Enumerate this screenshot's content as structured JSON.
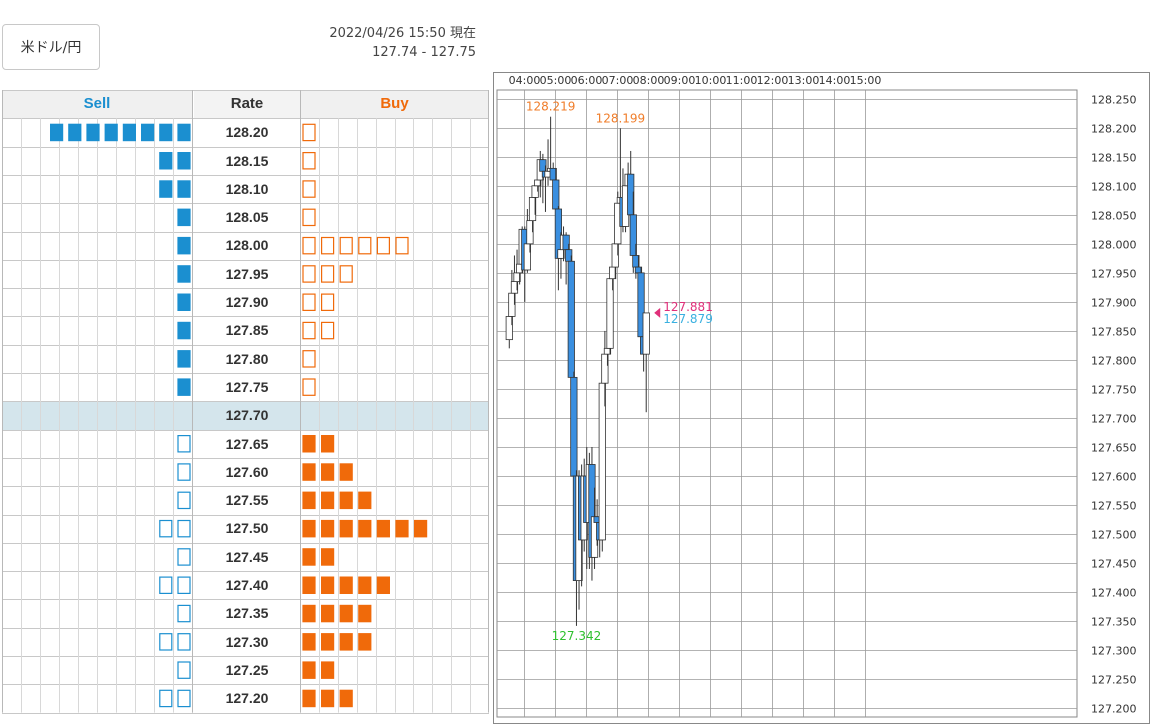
{
  "pair_button": "米ドル/円",
  "timestamp": "2022/04/26 15:50 現在",
  "bid_ask": "127.74 - 127.75",
  "colors": {
    "sell": "#1b8fd0",
    "buy": "#f06a0a",
    "rate_highlight": "#d4e5ec",
    "bear_candle": "#3a8fe0",
    "bull_candle": "#ffffff",
    "high_marker": "#f07d2a",
    "low_marker": "#2ec02e",
    "ask_marker": "#e0307a",
    "bid_marker": "#3ab0e0"
  },
  "order_book": {
    "headers": {
      "sell": "Sell",
      "rate": "Rate",
      "buy": "Buy"
    },
    "rows": [
      {
        "rate": "128.20",
        "sell": 8,
        "sell_filled": true,
        "buy": 1,
        "buy_filled": false
      },
      {
        "rate": "128.15",
        "sell": 2,
        "sell_filled": true,
        "buy": 1,
        "buy_filled": false
      },
      {
        "rate": "128.10",
        "sell": 2,
        "sell_filled": true,
        "buy": 1,
        "buy_filled": false
      },
      {
        "rate": "128.05",
        "sell": 1,
        "sell_filled": true,
        "buy": 1,
        "buy_filled": false
      },
      {
        "rate": "128.00",
        "sell": 1,
        "sell_filled": true,
        "buy": 6,
        "buy_filled": false
      },
      {
        "rate": "127.95",
        "sell": 1,
        "sell_filled": true,
        "buy": 3,
        "buy_filled": false
      },
      {
        "rate": "127.90",
        "sell": 1,
        "sell_filled": true,
        "buy": 2,
        "buy_filled": false
      },
      {
        "rate": "127.85",
        "sell": 1,
        "sell_filled": true,
        "buy": 2,
        "buy_filled": false
      },
      {
        "rate": "127.80",
        "sell": 1,
        "sell_filled": true,
        "buy": 1,
        "buy_filled": false
      },
      {
        "rate": "127.75",
        "sell": 1,
        "sell_filled": true,
        "buy": 1,
        "buy_filled": false
      },
      {
        "rate": "127.70",
        "sell": 0,
        "sell_filled": true,
        "buy": 0,
        "buy_filled": true,
        "current": true
      },
      {
        "rate": "127.65",
        "sell": 1,
        "sell_filled": false,
        "buy": 2,
        "buy_filled": true
      },
      {
        "rate": "127.60",
        "sell": 1,
        "sell_filled": false,
        "buy": 3,
        "buy_filled": true
      },
      {
        "rate": "127.55",
        "sell": 1,
        "sell_filled": false,
        "buy": 4,
        "buy_filled": true
      },
      {
        "rate": "127.50",
        "sell": 2,
        "sell_filled": false,
        "buy": 7,
        "buy_filled": true
      },
      {
        "rate": "127.45",
        "sell": 1,
        "sell_filled": false,
        "buy": 2,
        "buy_filled": true
      },
      {
        "rate": "127.40",
        "sell": 2,
        "sell_filled": false,
        "buy": 5,
        "buy_filled": true
      },
      {
        "rate": "127.35",
        "sell": 1,
        "sell_filled": false,
        "buy": 4,
        "buy_filled": true
      },
      {
        "rate": "127.30",
        "sell": 2,
        "sell_filled": false,
        "buy": 4,
        "buy_filled": true
      },
      {
        "rate": "127.25",
        "sell": 1,
        "sell_filled": false,
        "buy": 2,
        "buy_filled": true
      },
      {
        "rate": "127.20",
        "sell": 2,
        "sell_filled": false,
        "buy": 3,
        "buy_filled": true
      }
    ]
  },
  "chart_data": {
    "type": "candlestick",
    "time_labels": [
      "04:00",
      "05:00",
      "06:00",
      "07:00",
      "08:00",
      "09:00",
      "10:00",
      "11:00",
      "12:00",
      "13:00",
      "14:00",
      "15:00"
    ],
    "price_labels": [
      "128.250",
      "128.200",
      "128.150",
      "128.100",
      "128.050",
      "128.000",
      "127.950",
      "127.900",
      "127.850",
      "127.800",
      "127.750",
      "127.700",
      "127.650",
      "127.600",
      "127.550",
      "127.500",
      "127.450",
      "127.400",
      "127.350",
      "127.300",
      "127.250",
      "127.200"
    ],
    "ylim": [
      127.185,
      128.265
    ],
    "candles_per_hour": 12,
    "start_hour": "03:30",
    "ohlc": [
      [
        127.835,
        127.9,
        127.82,
        127.875
      ],
      [
        127.875,
        127.955,
        127.86,
        127.915
      ],
      [
        127.915,
        127.98,
        127.895,
        127.935
      ],
      [
        127.935,
        127.99,
        127.92,
        127.95
      ],
      [
        127.95,
        128.01,
        127.93,
        127.965
      ],
      [
        127.965,
        128.03,
        127.95,
        128.025
      ],
      [
        128.025,
        128.03,
        127.9,
        127.955
      ],
      [
        127.955,
        128.06,
        127.95,
        128.0
      ],
      [
        128.0,
        128.05,
        127.985,
        128.04
      ],
      [
        128.04,
        128.095,
        128.02,
        128.08
      ],
      [
        128.08,
        128.11,
        128.05,
        128.1
      ],
      [
        128.1,
        128.13,
        128.09,
        128.11
      ],
      [
        128.11,
        128.16,
        128.08,
        128.145
      ],
      [
        128.145,
        128.155,
        128.07,
        128.125
      ],
      [
        128.125,
        128.135,
        128.055,
        128.115
      ],
      [
        128.115,
        128.18,
        128.1,
        128.125
      ],
      [
        128.125,
        128.219,
        128.12,
        128.13
      ],
      [
        128.13,
        128.14,
        128.06,
        128.11
      ],
      [
        128.11,
        128.13,
        128.05,
        128.06
      ],
      [
        128.06,
        128.065,
        127.92,
        127.975
      ],
      [
        127.975,
        128.02,
        127.94,
        127.99
      ],
      [
        127.99,
        128.03,
        127.97,
        128.015
      ],
      [
        128.015,
        128.02,
        127.93,
        127.99
      ],
      [
        127.99,
        128.0,
        127.89,
        127.97
      ],
      [
        127.97,
        127.98,
        127.74,
        127.77
      ],
      [
        127.77,
        127.78,
        127.48,
        127.6
      ],
      [
        127.6,
        127.61,
        127.342,
        127.42
      ],
      [
        127.42,
        127.61,
        127.37,
        127.6
      ],
      [
        127.6,
        127.62,
        127.41,
        127.49
      ],
      [
        127.49,
        127.63,
        127.47,
        127.6
      ],
      [
        127.6,
        127.65,
        127.44,
        127.52
      ],
      [
        127.52,
        127.64,
        127.44,
        127.62
      ],
      [
        127.62,
        127.65,
        127.42,
        127.46
      ],
      [
        127.46,
        127.58,
        127.44,
        127.53
      ],
      [
        127.53,
        127.56,
        127.48,
        127.52
      ],
      [
        127.52,
        127.54,
        127.46,
        127.49
      ],
      [
        127.49,
        127.76,
        127.47,
        127.76
      ],
      [
        127.76,
        127.85,
        127.72,
        127.81
      ],
      [
        127.81,
        127.88,
        127.79,
        127.82
      ],
      [
        127.82,
        127.96,
        127.81,
        127.94
      ],
      [
        127.94,
        128.0,
        127.92,
        127.96
      ],
      [
        127.96,
        128.02,
        127.94,
        128.0
      ],
      [
        128.0,
        128.09,
        127.98,
        128.07
      ],
      [
        128.07,
        128.199,
        128.05,
        128.08
      ],
      [
        128.08,
        128.13,
        128.02,
        128.03
      ],
      [
        128.03,
        128.11,
        128.02,
        128.1
      ],
      [
        128.1,
        128.14,
        128.08,
        128.12
      ],
      [
        128.12,
        128.16,
        128.04,
        128.05
      ],
      [
        128.05,
        128.09,
        127.95,
        127.98
      ],
      [
        127.98,
        128.0,
        127.94,
        127.96
      ],
      [
        127.96,
        127.98,
        127.89,
        127.95
      ],
      [
        127.95,
        127.96,
        127.83,
        127.84
      ],
      [
        127.84,
        127.86,
        127.78,
        127.81
      ],
      [
        127.81,
        127.881,
        127.71,
        127.881
      ]
    ],
    "annotations": [
      {
        "text": "128.219",
        "price": 128.219,
        "color": "#f07d2a"
      },
      {
        "text": "128.199",
        "price": 128.199,
        "color": "#f07d2a"
      },
      {
        "text": "127.342",
        "price": 127.342,
        "color": "#2ec02e"
      }
    ],
    "ask": {
      "text": "127.881",
      "price": 127.881
    },
    "bid": {
      "text": "127.879",
      "price": 127.879
    }
  }
}
